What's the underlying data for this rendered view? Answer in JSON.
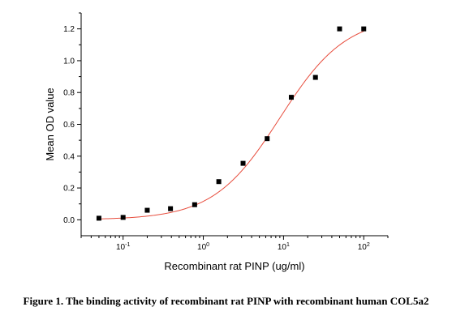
{
  "chart_data": {
    "type": "scatter",
    "x_scale": "log",
    "xlabel": "Recombinant rat PINP (ug/ml)",
    "ylabel": "Mean OD value",
    "xlim": [
      0.03,
      200
    ],
    "ylim": [
      -0.1,
      1.3
    ],
    "x_ticks": [
      {
        "base": "10",
        "exp": "-1",
        "value": 0.1
      },
      {
        "base": "10",
        "exp": "0",
        "value": 1
      },
      {
        "base": "10",
        "exp": "1",
        "value": 10
      },
      {
        "base": "10",
        "exp": "2",
        "value": 100
      }
    ],
    "y_ticks": [
      "0.0",
      "0.2",
      "0.4",
      "0.6",
      "0.8",
      "1.0",
      "1.2"
    ],
    "grid": false,
    "marker_color": "#000000",
    "fit_color": "#e74c3c",
    "series": [
      {
        "x": [
          0.05,
          0.1,
          0.2,
          0.39,
          0.78,
          1.56,
          3.13,
          6.25,
          12.5,
          25,
          50,
          100
        ],
        "y": [
          0.01,
          0.015,
          0.06,
          0.07,
          0.095,
          0.24,
          0.355,
          0.51,
          0.77,
          0.895,
          1.2,
          1.2
        ]
      }
    ],
    "fit": {
      "model": "4PL",
      "bottom": 0.0,
      "top": 1.28,
      "ec50": 9.0,
      "hill": 1.05,
      "x_range": [
        0.05,
        100
      ]
    }
  },
  "caption": "Figure 1. The binding activity of recombinant rat PINP with recombinant human COL5a2"
}
